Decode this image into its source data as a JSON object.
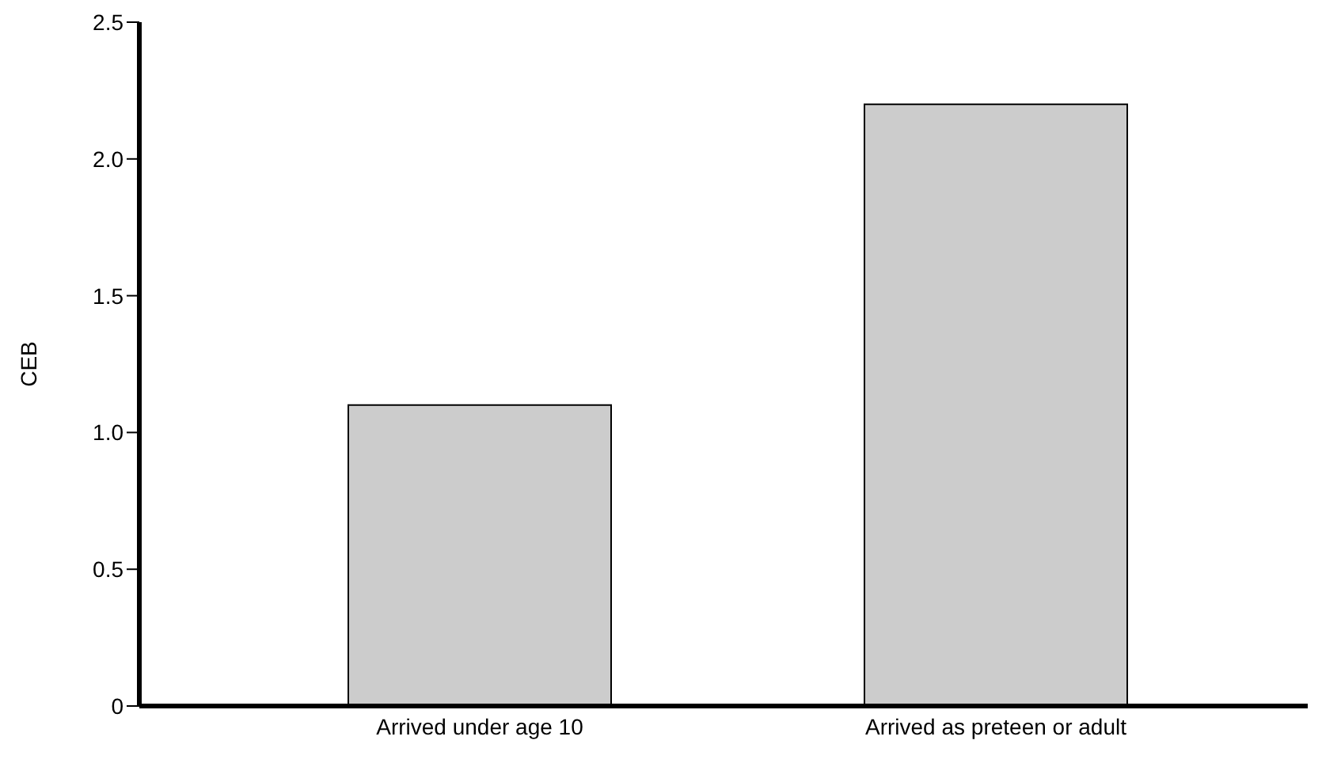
{
  "chart_data": {
    "type": "bar",
    "ylabel": "CEB",
    "categories": [
      "Arrived under age 10",
      "Arrived as preteen or adult"
    ],
    "values": [
      1.1,
      2.2
    ],
    "color": "#cccccc",
    "ylim": [
      0,
      2.5
    ],
    "yticks": [
      {
        "value": 0,
        "label": "0"
      },
      0.5,
      {
        "value": 1,
        "label": "1.0"
      },
      1.5,
      {
        "value": 2,
        "label": "2.0"
      },
      2.5
    ],
    "grid": false,
    "legend": false
  }
}
